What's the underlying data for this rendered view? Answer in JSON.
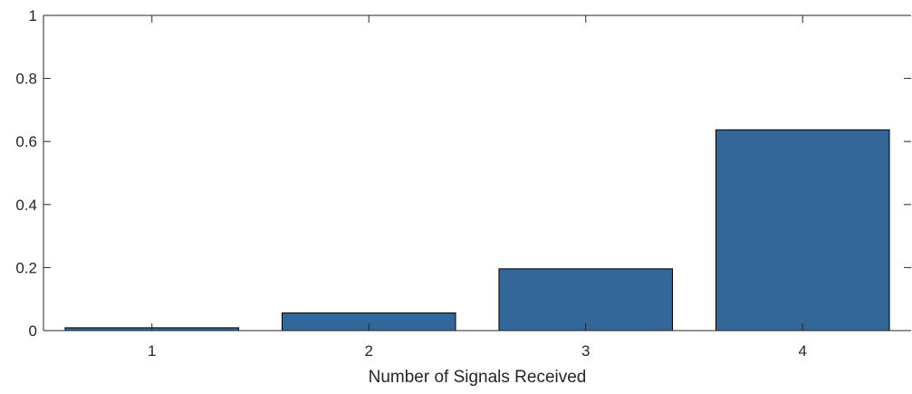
{
  "chart_data": {
    "type": "bar",
    "title": "",
    "xlabel": "Number of Signals Received",
    "ylabel": "",
    "categories": [
      "1",
      "2",
      "3",
      "4"
    ],
    "values": [
      0.009,
      0.056,
      0.196,
      0.637
    ],
    "ylim": [
      0,
      1
    ],
    "yticks": [
      "0",
      "0.2",
      "0.4",
      "0.6",
      "0.8",
      "1"
    ],
    "grid": false,
    "legend": "none",
    "colors": {
      "bar_fill": "#336699",
      "bar_edge": "#000000",
      "axis": "#262626"
    }
  }
}
